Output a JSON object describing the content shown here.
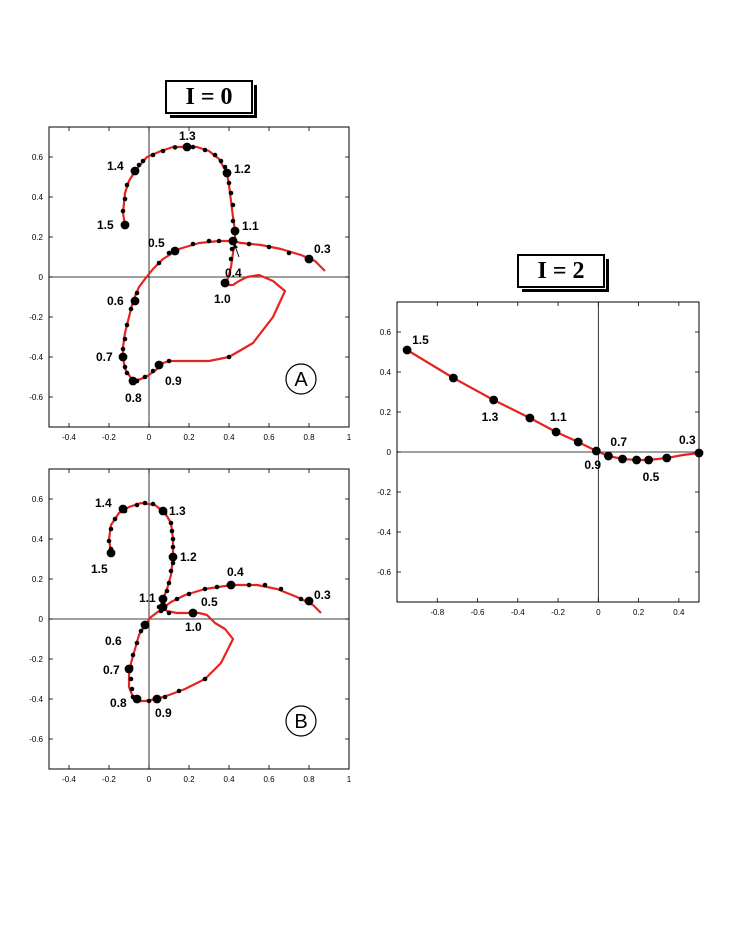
{
  "titles": {
    "left": "I = 0",
    "right": "I = 2"
  },
  "chart_data": [
    {
      "id": "A",
      "type": "line",
      "panel_label": "A",
      "xlim": [
        -0.5,
        1.0
      ],
      "ylim": [
        -0.75,
        0.75
      ],
      "xticks": [
        "-0.4",
        "-0.2",
        "0",
        "0.2",
        "0.4",
        "0.6",
        "0.8",
        "1"
      ],
      "xtick_values": [
        -0.4,
        -0.2,
        0,
        0.2,
        0.4,
        0.6,
        0.8,
        1.0
      ],
      "yticks": [
        "-0.6",
        "-0.4",
        "-0.2",
        "0",
        "0.2",
        "0.4",
        "0.6"
      ],
      "ytick_values": [
        -0.6,
        -0.4,
        -0.2,
        0,
        0.2,
        0.4,
        0.6
      ],
      "line_color": "#e8231f",
      "curve": [
        [
          0.88,
          0.03
        ],
        [
          0.83,
          0.08
        ],
        [
          0.76,
          0.11
        ],
        [
          0.66,
          0.14
        ],
        [
          0.56,
          0.16
        ],
        [
          0.46,
          0.17
        ],
        [
          0.42,
          0.18
        ],
        [
          0.35,
          0.18
        ],
        [
          0.25,
          0.17
        ],
        [
          0.15,
          0.14
        ],
        [
          0.07,
          0.09
        ],
        [
          0.02,
          0.04
        ],
        [
          -0.02,
          -0.01
        ],
        [
          -0.05,
          -0.05
        ],
        [
          -0.08,
          -0.12
        ],
        [
          -0.1,
          -0.2
        ],
        [
          -0.12,
          -0.28
        ],
        [
          -0.13,
          -0.35
        ],
        [
          -0.13,
          -0.4
        ],
        [
          -0.12,
          -0.46
        ],
        [
          -0.1,
          -0.49
        ],
        [
          -0.08,
          -0.52
        ],
        [
          -0.04,
          -0.51
        ],
        [
          0.0,
          -0.49
        ],
        [
          0.04,
          -0.46
        ],
        [
          0.07,
          -0.43
        ],
        [
          0.1,
          -0.42
        ],
        [
          0.2,
          -0.42
        ],
        [
          0.3,
          -0.42
        ],
        [
          0.4,
          -0.4
        ],
        [
          0.52,
          -0.33
        ],
        [
          0.62,
          -0.2
        ],
        [
          0.68,
          -0.07
        ],
        [
          0.62,
          -0.02
        ],
        [
          0.55,
          0.01
        ],
        [
          0.49,
          0.0
        ],
        [
          0.45,
          -0.02
        ],
        [
          0.42,
          -0.04
        ],
        [
          0.4,
          -0.04
        ],
        [
          0.38,
          -0.02
        ],
        [
          0.39,
          -0.02
        ],
        [
          0.4,
          0.01
        ],
        [
          0.41,
          0.05
        ],
        [
          0.42,
          0.12
        ],
        [
          0.43,
          0.18
        ],
        [
          0.43,
          0.23
        ],
        [
          0.42,
          0.3
        ],
        [
          0.41,
          0.38
        ],
        [
          0.4,
          0.46
        ],
        [
          0.39,
          0.52
        ],
        [
          0.35,
          0.59
        ],
        [
          0.3,
          0.63
        ],
        [
          0.24,
          0.65
        ],
        [
          0.18,
          0.65
        ],
        [
          0.12,
          0.65
        ],
        [
          0.06,
          0.63
        ],
        [
          -0.01,
          0.6
        ],
        [
          -0.07,
          0.53
        ],
        [
          -0.1,
          0.48
        ],
        [
          -0.12,
          0.42
        ],
        [
          -0.13,
          0.32
        ],
        [
          -0.12,
          0.26
        ]
      ],
      "small_points": [
        [
          0.7,
          0.12
        ],
        [
          0.6,
          0.15
        ],
        [
          0.5,
          0.165
        ],
        [
          0.35,
          0.18
        ],
        [
          0.3,
          0.18
        ],
        [
          0.22,
          0.165
        ],
        [
          0.1,
          0.12
        ],
        [
          0.05,
          0.07
        ],
        [
          -0.06,
          -0.08
        ],
        [
          -0.09,
          -0.16
        ],
        [
          -0.11,
          -0.24
        ],
        [
          -0.12,
          -0.31
        ],
        [
          -0.13,
          -0.36
        ],
        [
          -0.12,
          -0.45
        ],
        [
          -0.11,
          -0.48
        ],
        [
          -0.06,
          -0.52
        ],
        [
          -0.02,
          -0.5
        ],
        [
          0.02,
          -0.47
        ],
        [
          0.1,
          -0.42
        ],
        [
          0.4,
          -0.4
        ],
        [
          0.415,
          0.14
        ],
        [
          0.41,
          0.09
        ],
        [
          0.42,
          0.28
        ],
        [
          0.42,
          0.36
        ],
        [
          0.41,
          0.42
        ],
        [
          0.4,
          0.47
        ],
        [
          0.38,
          0.55
        ],
        [
          0.36,
          0.58
        ],
        [
          0.33,
          0.61
        ],
        [
          0.28,
          0.635
        ],
        [
          0.22,
          0.65
        ],
        [
          0.13,
          0.648
        ],
        [
          0.07,
          0.63
        ],
        [
          0.02,
          0.61
        ],
        [
          -0.03,
          0.58
        ],
        [
          -0.05,
          0.56
        ],
        [
          -0.11,
          0.46
        ],
        [
          -0.12,
          0.39
        ],
        [
          -0.13,
          0.33
        ]
      ],
      "points": [
        {
          "param": "0.3",
          "x": 0.8,
          "y": 0.09,
          "dx": 5,
          "dy": -6
        },
        {
          "param": "0.4",
          "x": 0.42,
          "y": 0.18,
          "dx": -8,
          "dy": 36
        },
        {
          "param": "0.5",
          "x": 0.13,
          "y": 0.13,
          "dx": -27,
          "dy": -4
        },
        {
          "param": "0.6",
          "x": -0.07,
          "y": -0.12,
          "dx": -28,
          "dy": 4
        },
        {
          "param": "0.7",
          "x": -0.13,
          "y": -0.4,
          "dx": -27,
          "dy": 4
        },
        {
          "param": "0.8",
          "x": -0.08,
          "y": -0.52,
          "dx": -8,
          "dy": 21
        },
        {
          "param": "0.9",
          "x": 0.05,
          "y": -0.44,
          "dx": 6,
          "dy": 20
        },
        {
          "param": "1.0",
          "x": 0.38,
          "y": -0.03,
          "dx": -11,
          "dy": 20
        },
        {
          "param": "1.1",
          "x": 0.43,
          "y": 0.23,
          "dx": 7,
          "dy": -1
        },
        {
          "param": "1.2",
          "x": 0.39,
          "y": 0.52,
          "dx": 7,
          "dy": 0
        },
        {
          "param": "1.3",
          "x": 0.19,
          "y": 0.65,
          "dx": -8,
          "dy": -7
        },
        {
          "param": "1.4",
          "x": -0.07,
          "y": 0.53,
          "dx": -28,
          "dy": -1
        },
        {
          "param": "1.5",
          "x": -0.12,
          "y": 0.26,
          "dx": -28,
          "dy": 4
        }
      ],
      "arrow": {
        "from": [
          0.45,
          0.1
        ],
        "to": [
          0.425,
          0.17
        ]
      }
    },
    {
      "id": "B",
      "type": "line",
      "panel_label": "B",
      "xlim": [
        -0.5,
        1.0
      ],
      "ylim": [
        -0.75,
        0.75
      ],
      "xticks": [
        "-0.4",
        "-0.2",
        "0",
        "0.2",
        "0.4",
        "0.6",
        "0.8",
        "1"
      ],
      "xtick_values": [
        -0.4,
        -0.2,
        0,
        0.2,
        0.4,
        0.6,
        0.8,
        1.0
      ],
      "yticks": [
        "-0.6",
        "-0.4",
        "-0.2",
        "0",
        "0.2",
        "0.4",
        "0.6"
      ],
      "ytick_values": [
        -0.6,
        -0.4,
        -0.2,
        0,
        0.2,
        0.4,
        0.6
      ],
      "line_color": "#e8231f",
      "curve": [
        [
          0.86,
          0.03
        ],
        [
          0.82,
          0.07
        ],
        [
          0.74,
          0.11
        ],
        [
          0.64,
          0.15
        ],
        [
          0.54,
          0.17
        ],
        [
          0.44,
          0.17
        ],
        [
          0.38,
          0.165
        ],
        [
          0.28,
          0.15
        ],
        [
          0.18,
          0.12
        ],
        [
          0.11,
          0.085
        ],
        [
          0.05,
          0.04
        ],
        [
          0.01,
          0.01
        ],
        [
          -0.02,
          -0.03
        ],
        [
          -0.05,
          -0.08
        ],
        [
          -0.07,
          -0.15
        ],
        [
          -0.09,
          -0.22
        ],
        [
          -0.1,
          -0.28
        ],
        [
          -0.1,
          -0.34
        ],
        [
          -0.08,
          -0.39
        ],
        [
          -0.05,
          -0.41
        ],
        [
          -0.02,
          -0.41
        ],
        [
          0.04,
          -0.4
        ],
        [
          0.1,
          -0.38
        ],
        [
          0.18,
          -0.35
        ],
        [
          0.28,
          -0.3
        ],
        [
          0.36,
          -0.22
        ],
        [
          0.4,
          -0.14
        ],
        [
          0.42,
          -0.1
        ],
        [
          0.38,
          -0.05
        ],
        [
          0.33,
          -0.02
        ],
        [
          0.29,
          0.02
        ],
        [
          0.25,
          0.03
        ],
        [
          0.19,
          0.03
        ],
        [
          0.14,
          0.03
        ],
        [
          0.09,
          0.04
        ],
        [
          0.07,
          0.06
        ],
        [
          0.07,
          0.1
        ],
        [
          0.09,
          0.15
        ],
        [
          0.11,
          0.22
        ],
        [
          0.12,
          0.31
        ],
        [
          0.12,
          0.4
        ],
        [
          0.11,
          0.48
        ],
        [
          0.08,
          0.53
        ],
        [
          0.03,
          0.57
        ],
        [
          -0.04,
          0.58
        ],
        [
          -0.1,
          0.56
        ],
        [
          -0.15,
          0.53
        ],
        [
          -0.19,
          0.47
        ],
        [
          -0.2,
          0.4
        ],
        [
          -0.19,
          0.33
        ]
      ],
      "small_points": [
        [
          0.76,
          0.1
        ],
        [
          0.66,
          0.15
        ],
        [
          0.58,
          0.17
        ],
        [
          0.5,
          0.17
        ],
        [
          0.34,
          0.16
        ],
        [
          0.28,
          0.15
        ],
        [
          0.2,
          0.125
        ],
        [
          0.14,
          0.1
        ],
        [
          -0.04,
          -0.06
        ],
        [
          -0.06,
          -0.12
        ],
        [
          -0.08,
          -0.18
        ],
        [
          -0.09,
          -0.24
        ],
        [
          -0.09,
          -0.3
        ],
        [
          -0.085,
          -0.35
        ],
        [
          -0.08,
          -0.39
        ],
        [
          0.0,
          -0.41
        ],
        [
          0.08,
          -0.39
        ],
        [
          0.15,
          -0.36
        ],
        [
          0.28,
          -0.3
        ],
        [
          0.1,
          0.03
        ],
        [
          0.06,
          0.04
        ],
        [
          0.05,
          0.06
        ],
        [
          0.09,
          0.14
        ],
        [
          0.1,
          0.18
        ],
        [
          0.11,
          0.24
        ],
        [
          0.12,
          0.28
        ],
        [
          0.12,
          0.36
        ],
        [
          0.12,
          0.4
        ],
        [
          0.115,
          0.44
        ],
        [
          0.11,
          0.48
        ],
        [
          0.08,
          0.53
        ],
        [
          0.02,
          0.575
        ],
        [
          -0.02,
          0.58
        ],
        [
          -0.06,
          0.57
        ],
        [
          -0.12,
          0.54
        ],
        [
          -0.17,
          0.5
        ],
        [
          -0.19,
          0.45
        ],
        [
          -0.2,
          0.39
        ],
        [
          -0.19,
          0.35
        ]
      ],
      "points": [
        {
          "param": "0.3",
          "x": 0.8,
          "y": 0.09,
          "dx": 5,
          "dy": -2
        },
        {
          "param": "0.4",
          "x": 0.41,
          "y": 0.17,
          "dx": -4,
          "dy": -9
        },
        {
          "param": "0.5",
          "x": 0.07,
          "y": 0.06,
          "dx": 38,
          "dy": -1
        },
        {
          "param": "0.6",
          "x": -0.02,
          "y": -0.03,
          "dx": -40,
          "dy": 20
        },
        {
          "param": "0.7",
          "x": -0.1,
          "y": -0.25,
          "dx": -26,
          "dy": 5
        },
        {
          "param": "0.8",
          "x": -0.06,
          "y": -0.4,
          "dx": -27,
          "dy": 8
        },
        {
          "param": "0.9",
          "x": 0.04,
          "y": -0.4,
          "dx": -2,
          "dy": 18
        },
        {
          "param": "1.0",
          "x": 0.22,
          "y": 0.03,
          "dx": -8,
          "dy": 18
        },
        {
          "param": "1.1",
          "x": 0.07,
          "y": 0.1,
          "dx": -24,
          "dy": 3
        },
        {
          "param": "1.2",
          "x": 0.12,
          "y": 0.31,
          "dx": 7,
          "dy": 4
        },
        {
          "param": "1.3",
          "x": 0.07,
          "y": 0.54,
          "dx": 6,
          "dy": 4
        },
        {
          "param": "1.4",
          "x": -0.13,
          "y": 0.55,
          "dx": -28,
          "dy": -2
        },
        {
          "param": "1.5",
          "x": -0.19,
          "y": 0.33,
          "dx": -20,
          "dy": 20
        }
      ]
    },
    {
      "id": "C",
      "type": "line",
      "panel_label": "",
      "xlim": [
        -1.0,
        0.5
      ],
      "ylim": [
        -0.75,
        0.75
      ],
      "xticks": [
        "-0.8",
        "-0.6",
        "-0.4",
        "-0.2",
        "0",
        "0.2",
        "0.4"
      ],
      "xtick_values": [
        -0.8,
        -0.6,
        -0.4,
        -0.2,
        0,
        0.2,
        0.4
      ],
      "yticks": [
        "-0.6",
        "-0.4",
        "-0.2",
        "0",
        "0.2",
        "0.4",
        "0.6"
      ],
      "ytick_values": [
        -0.6,
        -0.4,
        -0.2,
        0,
        0.2,
        0.4,
        0.6
      ],
      "line_color": "#e8231f",
      "curve": [
        [
          -0.95,
          0.51
        ],
        [
          -0.72,
          0.37
        ],
        [
          -0.52,
          0.26
        ],
        [
          -0.34,
          0.17
        ],
        [
          -0.21,
          0.1
        ],
        [
          -0.1,
          0.05
        ],
        [
          -0.01,
          0.005
        ],
        [
          0.05,
          -0.02
        ],
        [
          0.12,
          -0.035
        ],
        [
          0.19,
          -0.04
        ],
        [
          0.25,
          -0.04
        ],
        [
          0.34,
          -0.03
        ],
        [
          0.42,
          -0.015
        ],
        [
          0.5,
          -0.005
        ]
      ],
      "small_points": [],
      "points": [
        {
          "param": "1.5",
          "x": -0.95,
          "y": 0.51,
          "dx": 5,
          "dy": -6
        },
        {
          "param": "",
          "x": -0.72,
          "y": 0.37,
          "dx": 0,
          "dy": 0
        },
        {
          "param": "1.3",
          "x": -0.52,
          "y": 0.26,
          "dx": -12,
          "dy": 21
        },
        {
          "param": "",
          "x": -0.34,
          "y": 0.17,
          "dx": 0,
          "dy": 0
        },
        {
          "param": "1.1",
          "x": -0.21,
          "y": 0.1,
          "dx": -6,
          "dy": -11
        },
        {
          "param": "",
          "x": -0.1,
          "y": 0.05,
          "dx": 0,
          "dy": 0
        },
        {
          "param": "0.9",
          "x": -0.01,
          "y": 0.005,
          "dx": -12,
          "dy": 18
        },
        {
          "param": "0.7",
          "x": 0.05,
          "y": -0.02,
          "dx": 2,
          "dy": -10
        },
        {
          "param": "",
          "x": 0.12,
          "y": -0.035,
          "dx": 0,
          "dy": 0
        },
        {
          "param": "",
          "x": 0.19,
          "y": -0.04,
          "dx": 0,
          "dy": 0
        },
        {
          "param": "0.5",
          "x": 0.25,
          "y": -0.04,
          "dx": -6,
          "dy": 21
        },
        {
          "param": "",
          "x": 0.34,
          "y": -0.03,
          "dx": 0,
          "dy": 0
        },
        {
          "param": "0.3",
          "x": 0.5,
          "y": -0.005,
          "dx": -20,
          "dy": -9
        }
      ]
    }
  ]
}
